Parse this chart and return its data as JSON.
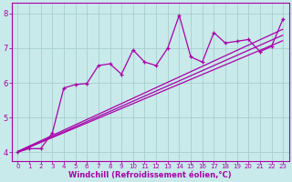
{
  "xlabel": "Windchill (Refroidissement éolien,°C)",
  "xlim": [
    -0.5,
    23.5
  ],
  "ylim": [
    3.75,
    8.3
  ],
  "xticks": [
    0,
    1,
    2,
    3,
    4,
    5,
    6,
    7,
    8,
    9,
    10,
    11,
    12,
    13,
    14,
    15,
    16,
    17,
    18,
    19,
    20,
    21,
    22,
    23
  ],
  "yticks": [
    4,
    5,
    6,
    7,
    8
  ],
  "bg_color": "#c8eaea",
  "grid_color": "#a8cece",
  "line_color": "#aa00aa",
  "data_x": [
    0,
    1,
    2,
    3,
    4,
    5,
    6,
    7,
    8,
    9,
    10,
    11,
    12,
    13,
    14,
    15,
    16,
    17,
    18,
    19,
    20,
    21,
    22,
    23
  ],
  "data_y": [
    4.0,
    4.1,
    4.1,
    4.55,
    5.85,
    5.95,
    5.98,
    6.5,
    6.55,
    6.25,
    6.95,
    6.6,
    6.5,
    7.0,
    7.95,
    6.75,
    6.6,
    7.45,
    7.15,
    7.2,
    7.25,
    6.9,
    7.05,
    7.85
  ],
  "ref_lines": [
    {
      "x": [
        0,
        23
      ],
      "y": [
        4.0,
        7.22
      ]
    },
    {
      "x": [
        0,
        23
      ],
      "y": [
        4.0,
        7.38
      ]
    },
    {
      "x": [
        0,
        23
      ],
      "y": [
        4.02,
        7.55
      ]
    }
  ],
  "xlabel_fontsize": 6,
  "xlabel_bold": true,
  "tick_fontsize_x": 5,
  "tick_fontsize_y": 6,
  "marker": "+",
  "markersize": 3.5,
  "linewidth": 0.9
}
